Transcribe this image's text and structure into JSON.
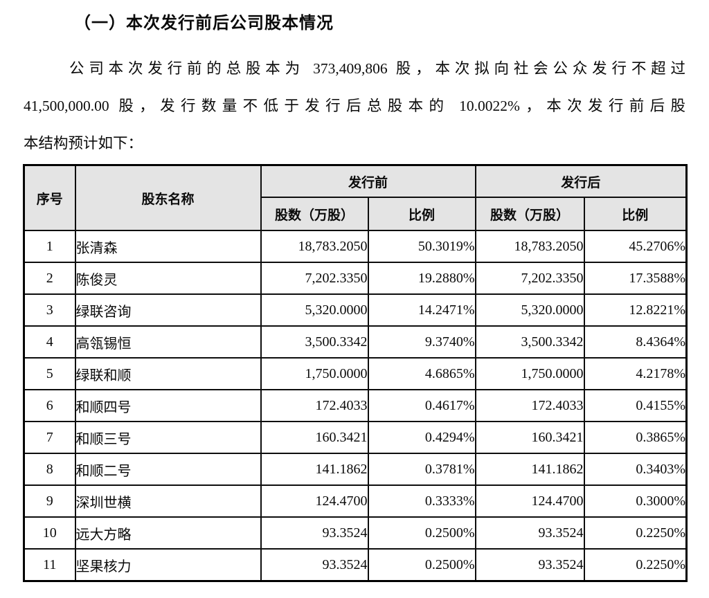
{
  "title": "（一）本次发行前后公司股本情况",
  "paragraph": {
    "line1": "公司本次发行前的总股本为 373,409,806 股，本次拟向社会公众发行不超过",
    "line2": "41,500,000.00 股，发行数量不低于发行后总股本的 10.0022%，本次发行前后股",
    "line3": "本结构预计如下："
  },
  "table": {
    "headers": {
      "index": "序号",
      "shareholder": "股东名称",
      "pre_issue": "发行前",
      "post_issue": "发行后",
      "shares": "股数（万股）",
      "ratio": "比例"
    },
    "rows": [
      {
        "no": "1",
        "name": "张清森",
        "pre_shares": "18,783.2050",
        "pre_ratio": "50.3019%",
        "post_shares": "18,783.2050",
        "post_ratio": "45.2706%"
      },
      {
        "no": "2",
        "name": "陈俊灵",
        "pre_shares": "7,202.3350",
        "pre_ratio": "19.2880%",
        "post_shares": "7,202.3350",
        "post_ratio": "17.3588%"
      },
      {
        "no": "3",
        "name": "绿联咨询",
        "pre_shares": "5,320.0000",
        "pre_ratio": "14.2471%",
        "post_shares": "5,320.0000",
        "post_ratio": "12.8221%"
      },
      {
        "no": "4",
        "name": "高瓴锡恒",
        "pre_shares": "3,500.3342",
        "pre_ratio": "9.3740%",
        "post_shares": "3,500.3342",
        "post_ratio": "8.4364%"
      },
      {
        "no": "5",
        "name": "绿联和顺",
        "pre_shares": "1,750.0000",
        "pre_ratio": "4.6865%",
        "post_shares": "1,750.0000",
        "post_ratio": "4.2178%"
      },
      {
        "no": "6",
        "name": "和顺四号",
        "pre_shares": "172.4033",
        "pre_ratio": "0.4617%",
        "post_shares": "172.4033",
        "post_ratio": "0.4155%"
      },
      {
        "no": "7",
        "name": "和顺三号",
        "pre_shares": "160.3421",
        "pre_ratio": "0.4294%",
        "post_shares": "160.3421",
        "post_ratio": "0.3865%"
      },
      {
        "no": "8",
        "name": "和顺二号",
        "pre_shares": "141.1862",
        "pre_ratio": "0.3781%",
        "post_shares": "141.1862",
        "post_ratio": "0.3403%"
      },
      {
        "no": "9",
        "name": "深圳世横",
        "pre_shares": "124.4700",
        "pre_ratio": "0.3333%",
        "post_shares": "124.4700",
        "post_ratio": "0.3000%"
      },
      {
        "no": "10",
        "name": "远大方略",
        "pre_shares": "93.3524",
        "pre_ratio": "0.2500%",
        "post_shares": "93.3524",
        "post_ratio": "0.2250%"
      },
      {
        "no": "11",
        "name": "坚果核力",
        "pre_shares": "93.3524",
        "pre_ratio": "0.2500%",
        "post_shares": "93.3524",
        "post_ratio": "0.2250%"
      }
    ]
  },
  "colors": {
    "header_bg": "#e4e4e4",
    "border": "#000000",
    "text": "#0a0a0a",
    "page_bg": "#ffffff"
  }
}
